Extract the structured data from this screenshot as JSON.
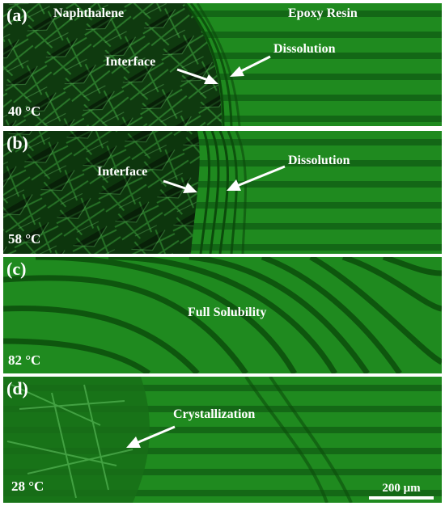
{
  "panels": [
    {
      "letter": "(a)",
      "temperature": "40 °C",
      "left_label": "Naphthalene",
      "right_label": "Epoxy Resin",
      "interface_label": "Interface",
      "process_label": "Dissolution"
    },
    {
      "letter": "(b)",
      "temperature": "58 °C",
      "interface_label": "Interface",
      "process_label": "Dissolution"
    },
    {
      "letter": "(c)",
      "temperature": "82 °C",
      "center_label": "Full Solubility"
    },
    {
      "letter": "(d)",
      "temperature": "28 °C",
      "process_label": "Crystallization",
      "scale_bar": "200 μm"
    }
  ],
  "colors": {
    "background": "#ffffff",
    "field_green": "#1f8a1f",
    "fringe_dark": "#0b4a0b",
    "crystal_dark": "#0a2a0a",
    "text": "#ffffff"
  }
}
